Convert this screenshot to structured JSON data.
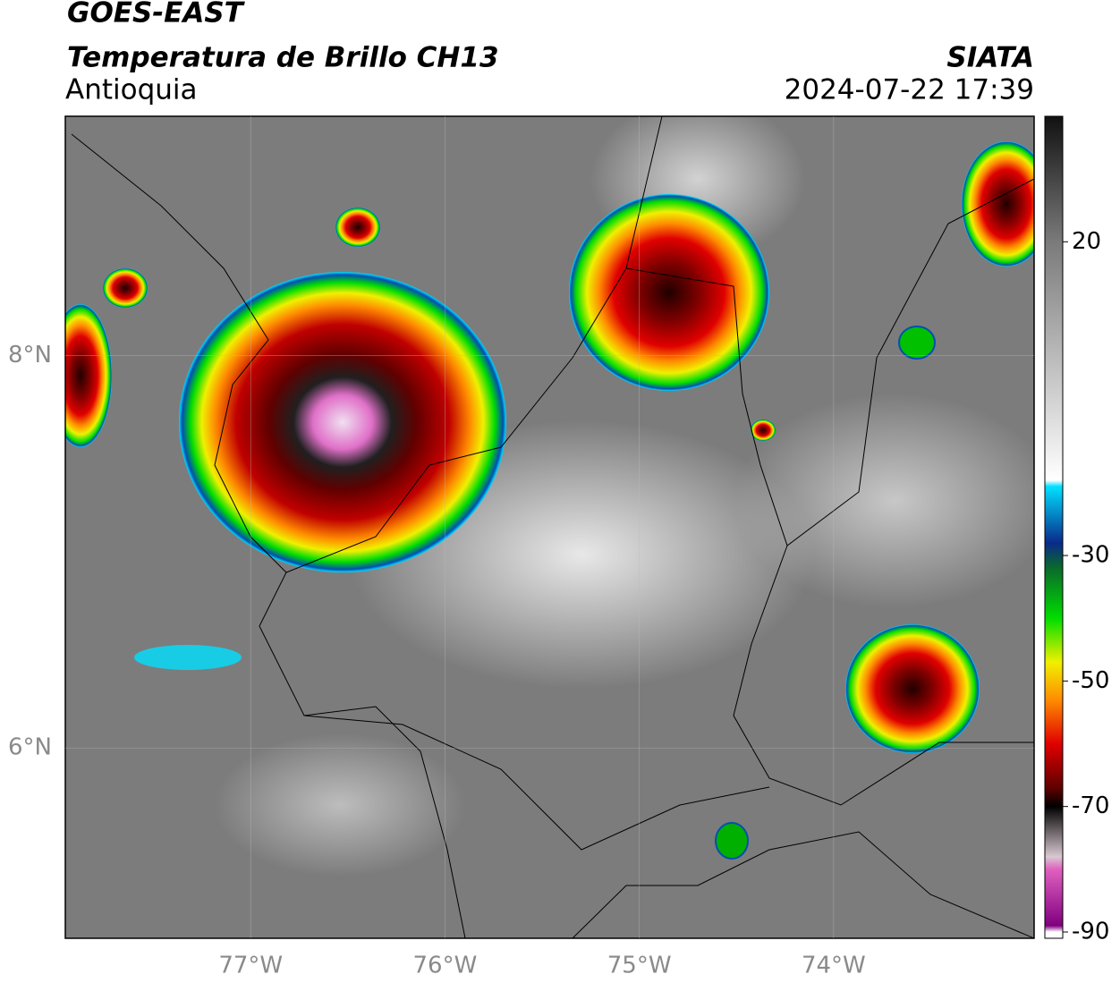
{
  "header": {
    "title": "GOES-EAST",
    "subtitle": "Temperatura de Brillo CH13",
    "region": "Antioquia",
    "source": "SIATA",
    "datetime": "2024-07-22 17:39"
  },
  "map": {
    "xlim": [
      -77.954,
      -72.968
    ],
    "ylim": [
      5.03,
      9.22
    ],
    "xticks": [
      {
        "value": -77,
        "label": "77°W"
      },
      {
        "value": -76,
        "label": "76°W"
      },
      {
        "value": -75,
        "label": "75°W"
      },
      {
        "value": -74,
        "label": "74°W"
      }
    ],
    "yticks": [
      {
        "value": 8,
        "label": "8°N"
      },
      {
        "value": 6,
        "label": "6°N"
      }
    ]
  },
  "colorbar": {
    "ylim": [
      -91,
      40
    ],
    "ticks": [
      20,
      -30,
      -50,
      -70,
      -90
    ],
    "colormap": [
      {
        "value": 40,
        "color": "#111111"
      },
      {
        "value": 20,
        "color": "#7a7a7a"
      },
      {
        "value": -18,
        "color": "#ffffff"
      },
      {
        "value": -19,
        "color": "#00e0ff"
      },
      {
        "value": -28,
        "color": "#0a2a8a"
      },
      {
        "value": -32,
        "color": "#0a6a2a"
      },
      {
        "value": -40,
        "color": "#00dd00"
      },
      {
        "value": -47,
        "color": "#f0f000"
      },
      {
        "value": -53,
        "color": "#ff8c00"
      },
      {
        "value": -60,
        "color": "#e00000"
      },
      {
        "value": -67,
        "color": "#600000"
      },
      {
        "value": -70,
        "color": "#000000"
      },
      {
        "value": -78,
        "color": "#d8c8d0"
      },
      {
        "value": -80,
        "color": "#e060c0"
      },
      {
        "value": -89,
        "color": "#800080"
      },
      {
        "value": -90,
        "color": "#ffffff"
      }
    ]
  }
}
